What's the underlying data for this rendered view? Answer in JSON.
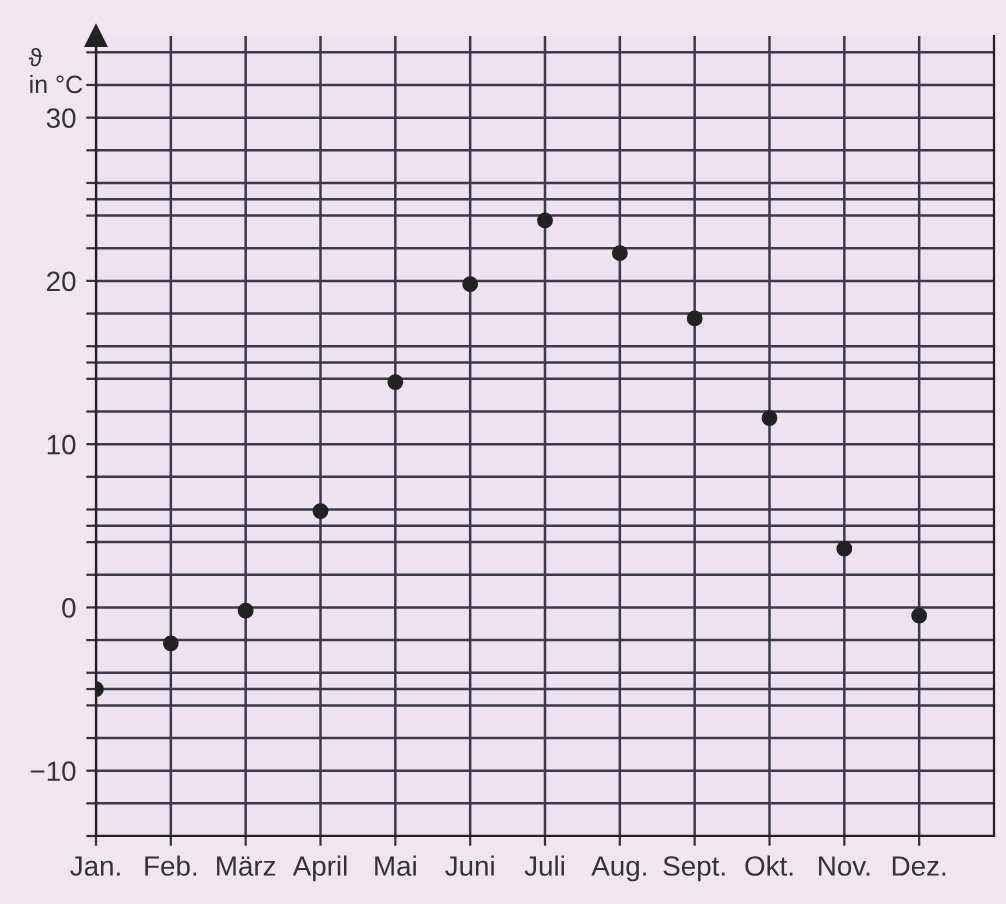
{
  "chart_data": {
    "type": "scatter",
    "ylabel": "ϑ\nin °C",
    "categories": [
      "Jan.",
      "Feb.",
      "März",
      "April",
      "Mai",
      "Juni",
      "Juli",
      "Aug.",
      "Sept.",
      "Okt.",
      "Nov.",
      "Dez."
    ],
    "series": [
      {
        "color": "#222222",
        "values": [
          -5.0,
          -2.2,
          -0.2,
          5.9,
          13.8,
          19.8,
          23.7,
          21.7,
          17.7,
          11.6,
          3.6,
          -0.5
        ]
      }
    ],
    "ylim": [
      -14,
      35
    ],
    "yticks": [
      {
        "value": -14,
        "label": null
      },
      {
        "value": -12,
        "label": null
      },
      -10,
      {
        "value": -8,
        "label": null
      },
      {
        "value": -6,
        "label": null
      },
      {
        "value": -5,
        "label": null
      },
      {
        "value": -4,
        "label": null
      },
      {
        "value": -2,
        "label": null
      },
      0,
      {
        "value": 2,
        "label": null
      },
      {
        "value": 4,
        "label": null
      },
      {
        "value": 5,
        "label": null
      },
      {
        "value": 6,
        "label": null
      },
      {
        "value": 8,
        "label": null
      },
      10,
      {
        "value": 12,
        "label": null
      },
      {
        "value": 14,
        "label": null
      },
      {
        "value": 15,
        "label": null
      },
      {
        "value": 16,
        "label": null
      },
      {
        "value": 18,
        "label": null
      },
      20,
      {
        "value": 22,
        "label": null
      },
      {
        "value": 24,
        "label": null
      },
      {
        "value": 25,
        "label": null
      },
      {
        "value": 26,
        "label": null
      },
      {
        "value": 28,
        "label": null
      },
      30,
      {
        "value": 32,
        "label": null
      },
      {
        "value": 34,
        "label": null
      }
    ],
    "grid": true,
    "marker": "circle"
  }
}
